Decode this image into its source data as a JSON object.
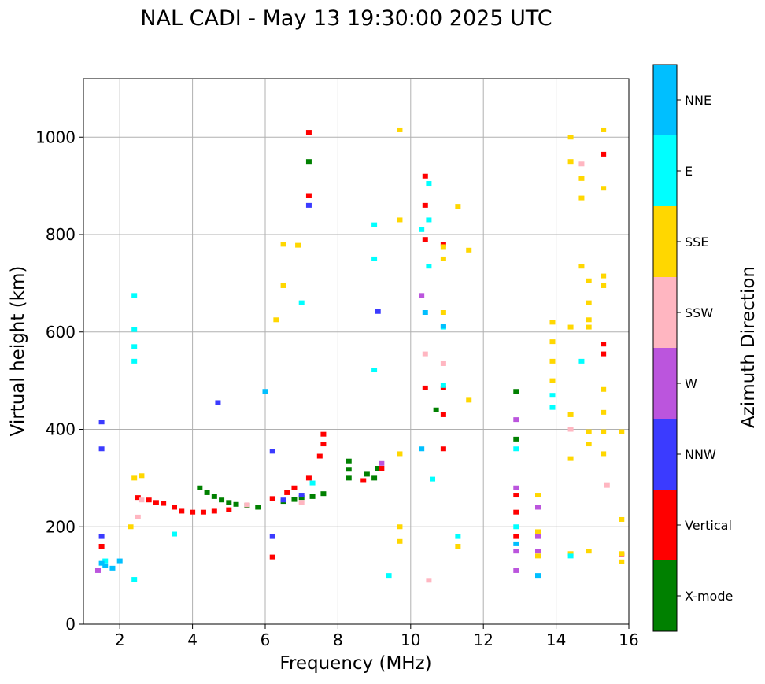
{
  "chart_data": {
    "type": "scatter",
    "title": "NAL CADI - May 13 19:30:00 2025 UTC",
    "xlabel": "Frequency (MHz)",
    "ylabel": "Virtual height (km)",
    "xlim": [
      1,
      16
    ],
    "ylim": [
      0,
      1120
    ],
    "xticks": [
      2,
      4,
      6,
      8,
      10,
      12,
      14,
      16
    ],
    "yticks": [
      0,
      200,
      400,
      600,
      800,
      1000
    ],
    "grid": true,
    "colorbar": {
      "label": "Azimuth Direction",
      "categories": [
        {
          "name": "X-mode",
          "color": "#008000"
        },
        {
          "name": "Vertical",
          "color": "#ff0000"
        },
        {
          "name": "NNW",
          "color": "#3b3bff"
        },
        {
          "name": "W",
          "color": "#bb55dd"
        },
        {
          "name": "SSW",
          "color": "#ffb6c1"
        },
        {
          "name": "SSE",
          "color": "#ffd700"
        },
        {
          "name": "E",
          "color": "#00ffff"
        },
        {
          "name": "NNE",
          "color": "#00bfff"
        }
      ]
    },
    "series": [
      {
        "category": "X-mode",
        "points": [
          [
            4.2,
            280
          ],
          [
            4.4,
            270
          ],
          [
            4.6,
            262
          ],
          [
            4.8,
            255
          ],
          [
            5.0,
            250
          ],
          [
            5.2,
            246
          ],
          [
            5.5,
            244
          ],
          [
            5.8,
            240
          ],
          [
            6.5,
            252
          ],
          [
            6.8,
            256
          ],
          [
            7.0,
            260
          ],
          [
            7.3,
            262
          ],
          [
            7.6,
            268
          ],
          [
            8.3,
            300
          ],
          [
            8.3,
            318
          ],
          [
            8.3,
            335
          ],
          [
            8.8,
            308
          ],
          [
            9.0,
            300
          ],
          [
            9.1,
            320
          ],
          [
            12.9,
            380
          ],
          [
            12.9,
            478
          ],
          [
            7.2,
            950
          ],
          [
            10.7,
            440
          ]
        ]
      },
      {
        "category": "Vertical",
        "points": [
          [
            2.5,
            260
          ],
          [
            2.8,
            255
          ],
          [
            3.0,
            250
          ],
          [
            3.2,
            248
          ],
          [
            3.5,
            240
          ],
          [
            3.7,
            232
          ],
          [
            4.0,
            230
          ],
          [
            4.3,
            230
          ],
          [
            4.6,
            232
          ],
          [
            5.0,
            235
          ],
          [
            6.2,
            258
          ],
          [
            6.6,
            270
          ],
          [
            6.8,
            280
          ],
          [
            7.2,
            300
          ],
          [
            7.5,
            345
          ],
          [
            7.6,
            370
          ],
          [
            7.6,
            390
          ],
          [
            8.7,
            295
          ],
          [
            9.2,
            320
          ],
          [
            6.2,
            138
          ],
          [
            10.4,
            920
          ],
          [
            10.4,
            860
          ],
          [
            10.4,
            790
          ],
          [
            10.4,
            485
          ],
          [
            10.9,
            360
          ],
          [
            10.9,
            780
          ],
          [
            10.9,
            485
          ],
          [
            10.9,
            430
          ],
          [
            12.9,
            230
          ],
          [
            12.9,
            180
          ],
          [
            12.9,
            265
          ],
          [
            15.3,
            575
          ],
          [
            15.3,
            555
          ],
          [
            15.3,
            965
          ],
          [
            15.8,
            143
          ],
          [
            7.2,
            1010
          ],
          [
            7.2,
            880
          ],
          [
            1.5,
            160
          ]
        ]
      },
      {
        "category": "NNW",
        "points": [
          [
            1.5,
            180
          ],
          [
            1.5,
            360
          ],
          [
            1.5,
            415
          ],
          [
            6.2,
            355
          ],
          [
            6.2,
            180
          ],
          [
            6.5,
            255
          ],
          [
            7.0,
            265
          ],
          [
            7.2,
            860
          ],
          [
            9.1,
            642
          ],
          [
            4.7,
            455
          ]
        ]
      },
      {
        "category": "W",
        "points": [
          [
            12.9,
            420
          ],
          [
            12.9,
            150
          ],
          [
            12.9,
            110
          ],
          [
            12.9,
            280
          ],
          [
            13.5,
            240
          ],
          [
            13.5,
            180
          ],
          [
            13.5,
            150
          ],
          [
            1.4,
            110
          ],
          [
            9.2,
            330
          ],
          [
            10.3,
            675
          ]
        ]
      },
      {
        "category": "SSW",
        "points": [
          [
            2.5,
            220
          ],
          [
            2.6,
            255
          ],
          [
            10.5,
            90
          ],
          [
            10.4,
            555
          ],
          [
            10.9,
            535
          ],
          [
            14.4,
            400
          ],
          [
            14.7,
            945
          ],
          [
            15.4,
            285
          ],
          [
            5.5,
            245
          ],
          [
            7.0,
            250
          ]
        ]
      },
      {
        "category": "SSE",
        "points": [
          [
            2.3,
            200
          ],
          [
            2.4,
            300
          ],
          [
            2.6,
            305
          ],
          [
            6.3,
            625
          ],
          [
            6.5,
            695
          ],
          [
            6.5,
            780
          ],
          [
            6.9,
            778
          ],
          [
            9.7,
            1015
          ],
          [
            9.7,
            830
          ],
          [
            9.7,
            350
          ],
          [
            9.7,
            200
          ],
          [
            9.7,
            170
          ],
          [
            10.9,
            775
          ],
          [
            10.9,
            750
          ],
          [
            10.9,
            640
          ],
          [
            11.3,
            858
          ],
          [
            11.6,
            768
          ],
          [
            11.6,
            460
          ],
          [
            11.3,
            160
          ],
          [
            13.5,
            265
          ],
          [
            13.5,
            190
          ],
          [
            13.5,
            140
          ],
          [
            13.9,
            620
          ],
          [
            13.9,
            580
          ],
          [
            13.9,
            540
          ],
          [
            13.9,
            500
          ],
          [
            14.4,
            1000
          ],
          [
            14.4,
            950
          ],
          [
            14.4,
            610
          ],
          [
            14.4,
            430
          ],
          [
            14.4,
            340
          ],
          [
            14.4,
            145
          ],
          [
            14.7,
            915
          ],
          [
            14.7,
            875
          ],
          [
            14.7,
            735
          ],
          [
            14.9,
            705
          ],
          [
            14.9,
            660
          ],
          [
            14.9,
            625
          ],
          [
            14.9,
            610
          ],
          [
            14.9,
            395
          ],
          [
            14.9,
            370
          ],
          [
            14.9,
            150
          ],
          [
            15.3,
            1015
          ],
          [
            15.3,
            895
          ],
          [
            15.3,
            715
          ],
          [
            15.3,
            695
          ],
          [
            15.3,
            482
          ],
          [
            15.3,
            435
          ],
          [
            15.3,
            395
          ],
          [
            15.3,
            350
          ],
          [
            15.8,
            395
          ],
          [
            15.8,
            215
          ],
          [
            15.8,
            145
          ],
          [
            15.8,
            128
          ]
        ]
      },
      {
        "category": "E",
        "points": [
          [
            2.4,
            570
          ],
          [
            2.4,
            540
          ],
          [
            2.4,
            605
          ],
          [
            2.4,
            675
          ],
          [
            2.4,
            92
          ],
          [
            3.5,
            185
          ],
          [
            7.3,
            290
          ],
          [
            9.0,
            820
          ],
          [
            9.0,
            750
          ],
          [
            9.0,
            522
          ],
          [
            9.4,
            100
          ],
          [
            10.3,
            810
          ],
          [
            10.5,
            830
          ],
          [
            10.5,
            735
          ],
          [
            10.5,
            905
          ],
          [
            10.6,
            298
          ],
          [
            10.9,
            610
          ],
          [
            10.9,
            490
          ],
          [
            11.3,
            180
          ],
          [
            12.9,
            360
          ],
          [
            12.9,
            200
          ],
          [
            13.9,
            470
          ],
          [
            13.9,
            445
          ],
          [
            14.4,
            140
          ],
          [
            14.7,
            540
          ],
          [
            7.0,
            660
          ],
          [
            1.6,
            130
          ]
        ]
      },
      {
        "category": "NNE",
        "points": [
          [
            1.5,
            125
          ],
          [
            1.6,
            120
          ],
          [
            1.8,
            115
          ],
          [
            2.0,
            130
          ],
          [
            6.0,
            478
          ],
          [
            10.3,
            360
          ],
          [
            10.4,
            640
          ],
          [
            10.9,
            612
          ],
          [
            12.9,
            165
          ],
          [
            13.5,
            100
          ]
        ]
      }
    ]
  }
}
